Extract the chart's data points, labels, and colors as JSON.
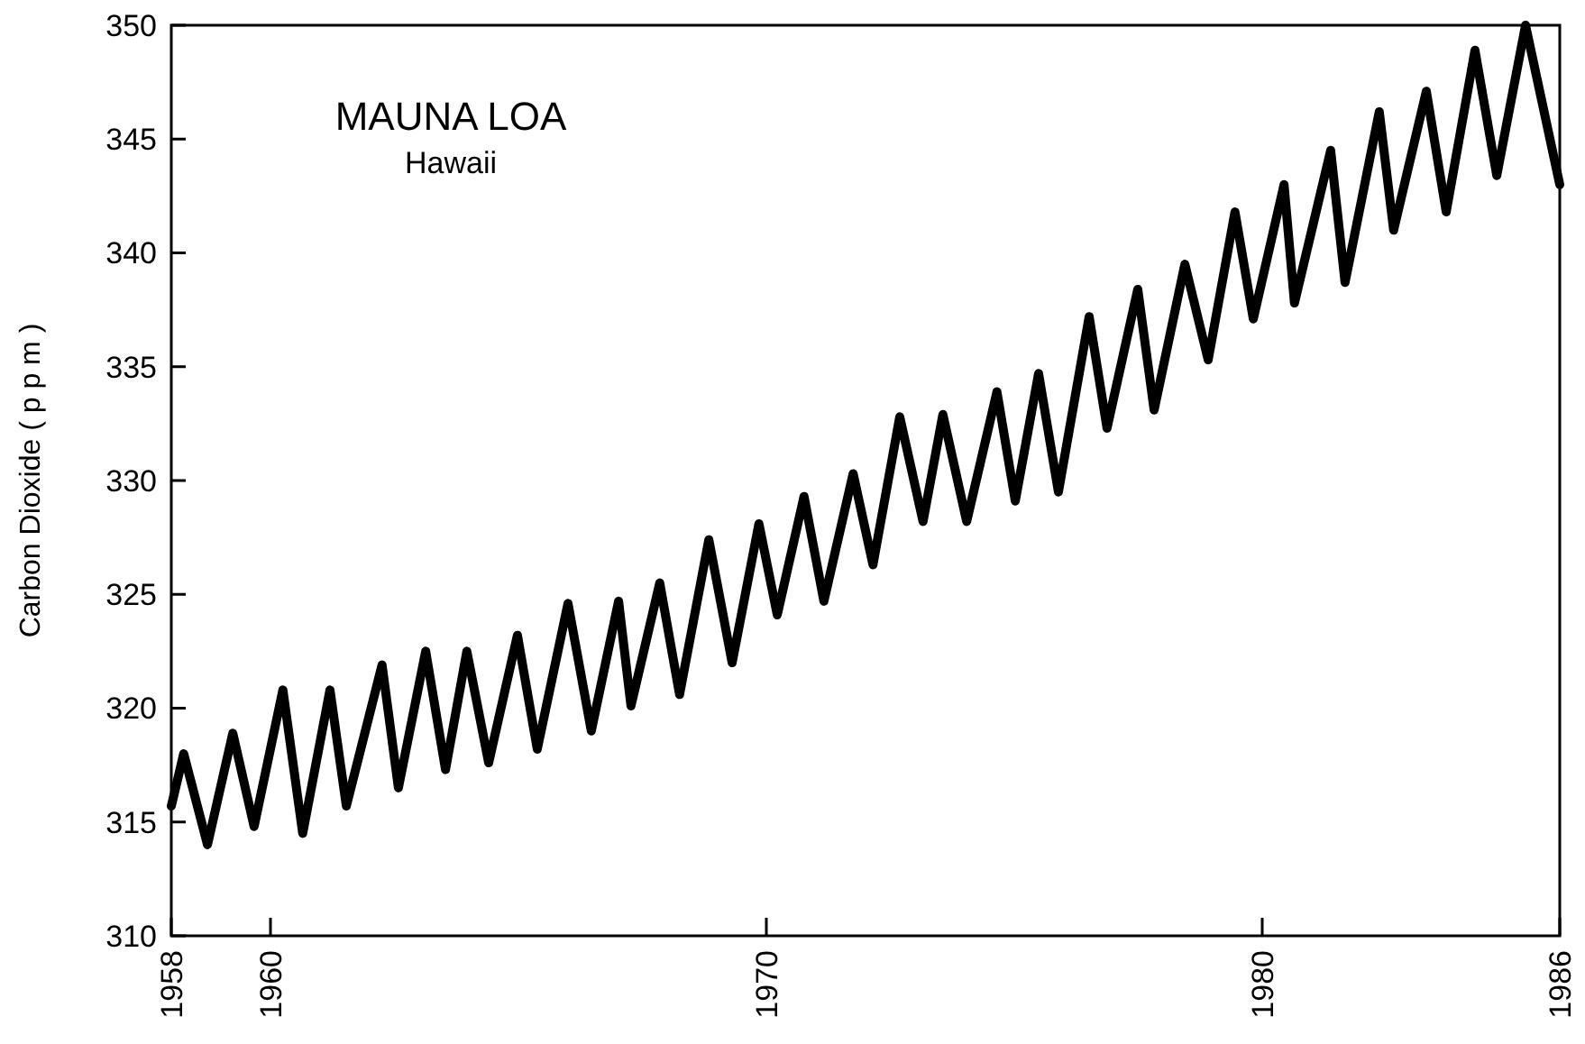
{
  "chart_data": {
    "type": "line",
    "title": "MAUNA LOA",
    "subtitle": "Hawaii",
    "ylabel": "Carbon Dioxide ( p p m )",
    "xlim": [
      1958,
      1986
    ],
    "xticks": [
      1958,
      1960,
      1970,
      1980,
      1986
    ],
    "ylim": [
      310,
      350
    ],
    "yticks": [
      310,
      315,
      320,
      325,
      330,
      335,
      340,
      345,
      350
    ],
    "grid": false,
    "marker": "none",
    "line_style": "solid",
    "series": [
      {
        "color": "#000000",
        "x": [
          1958.0,
          1958.25,
          1958.73,
          1959.24,
          1959.67,
          1960.25,
          1960.65,
          1961.2,
          1961.53,
          1962.25,
          1962.58,
          1963.13,
          1963.53,
          1963.96,
          1964.4,
          1964.98,
          1965.38,
          1966.0,
          1966.47,
          1967.02,
          1967.27,
          1967.85,
          1968.25,
          1968.84,
          1969.31,
          1969.85,
          1970.22,
          1970.76,
          1971.16,
          1971.75,
          1972.15,
          1972.69,
          1973.16,
          1973.56,
          1974.04,
          1974.65,
          1975.02,
          1975.49,
          1975.89,
          1976.51,
          1976.87,
          1977.49,
          1977.82,
          1978.44,
          1978.91,
          1979.45,
          1979.82,
          1980.44,
          1980.65,
          1981.38,
          1981.67,
          1982.36,
          1982.65,
          1983.31,
          1983.71,
          1984.29,
          1984.73,
          1985.31,
          1986.0
        ],
        "values": [
          315.7,
          318.0,
          314.0,
          318.9,
          314.8,
          320.8,
          314.5,
          320.8,
          315.7,
          321.9,
          316.5,
          322.5,
          317.3,
          322.5,
          317.6,
          323.2,
          318.2,
          324.6,
          319.0,
          324.7,
          320.1,
          325.5,
          320.6,
          327.4,
          322.0,
          328.1,
          324.1,
          329.3,
          324.7,
          330.3,
          326.3,
          332.8,
          328.2,
          332.9,
          328.2,
          333.9,
          329.1,
          334.7,
          329.5,
          337.2,
          332.3,
          338.4,
          333.1,
          339.5,
          335.3,
          341.8,
          337.1,
          343.0,
          337.8,
          344.5,
          338.7,
          346.2,
          341.0,
          347.1,
          341.8,
          348.9,
          343.4,
          350.0,
          343.0
        ]
      }
    ]
  }
}
